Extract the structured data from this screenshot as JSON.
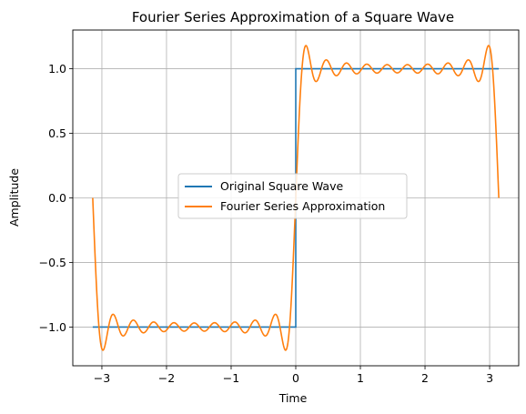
{
  "chart_data": {
    "type": "line",
    "title": "Fourier Series Approximation of a Square Wave",
    "xlabel": "Time",
    "ylabel": "Amplitude",
    "xlim": [
      -3.45,
      3.45
    ],
    "ylim": [
      -1.3,
      1.3
    ],
    "grid": true,
    "legend_position": "center",
    "x_ticks": [
      -3,
      -2,
      -1,
      0,
      1,
      2,
      3
    ],
    "x_tick_labels": [
      "−3",
      "−2",
      "−1",
      "0",
      "1",
      "2",
      "3"
    ],
    "y_ticks": [
      -1.0,
      -0.5,
      0.0,
      0.5,
      1.0
    ],
    "y_tick_labels": [
      "−1.0",
      "−0.5",
      "0.0",
      "0.5",
      "1.0"
    ],
    "x_domain": [
      -3.14159,
      3.14159
    ],
    "fourier_terms": 10,
    "series": [
      {
        "name": "Original Square Wave",
        "color": "#1f77b4",
        "values_description": "",
        "x": [
          -3.14159,
          0,
          0,
          3.14159
        ],
        "y": [
          -1,
          -1,
          1,
          1
        ]
      },
      {
        "name": "Fourier Series Approximation",
        "color": "#ff7f0e",
        "fourier_odd_harmonics": [
          1,
          3,
          5,
          7,
          9,
          11,
          13,
          15,
          17,
          19
        ],
        "amplitude": 1.0
      }
    ]
  }
}
